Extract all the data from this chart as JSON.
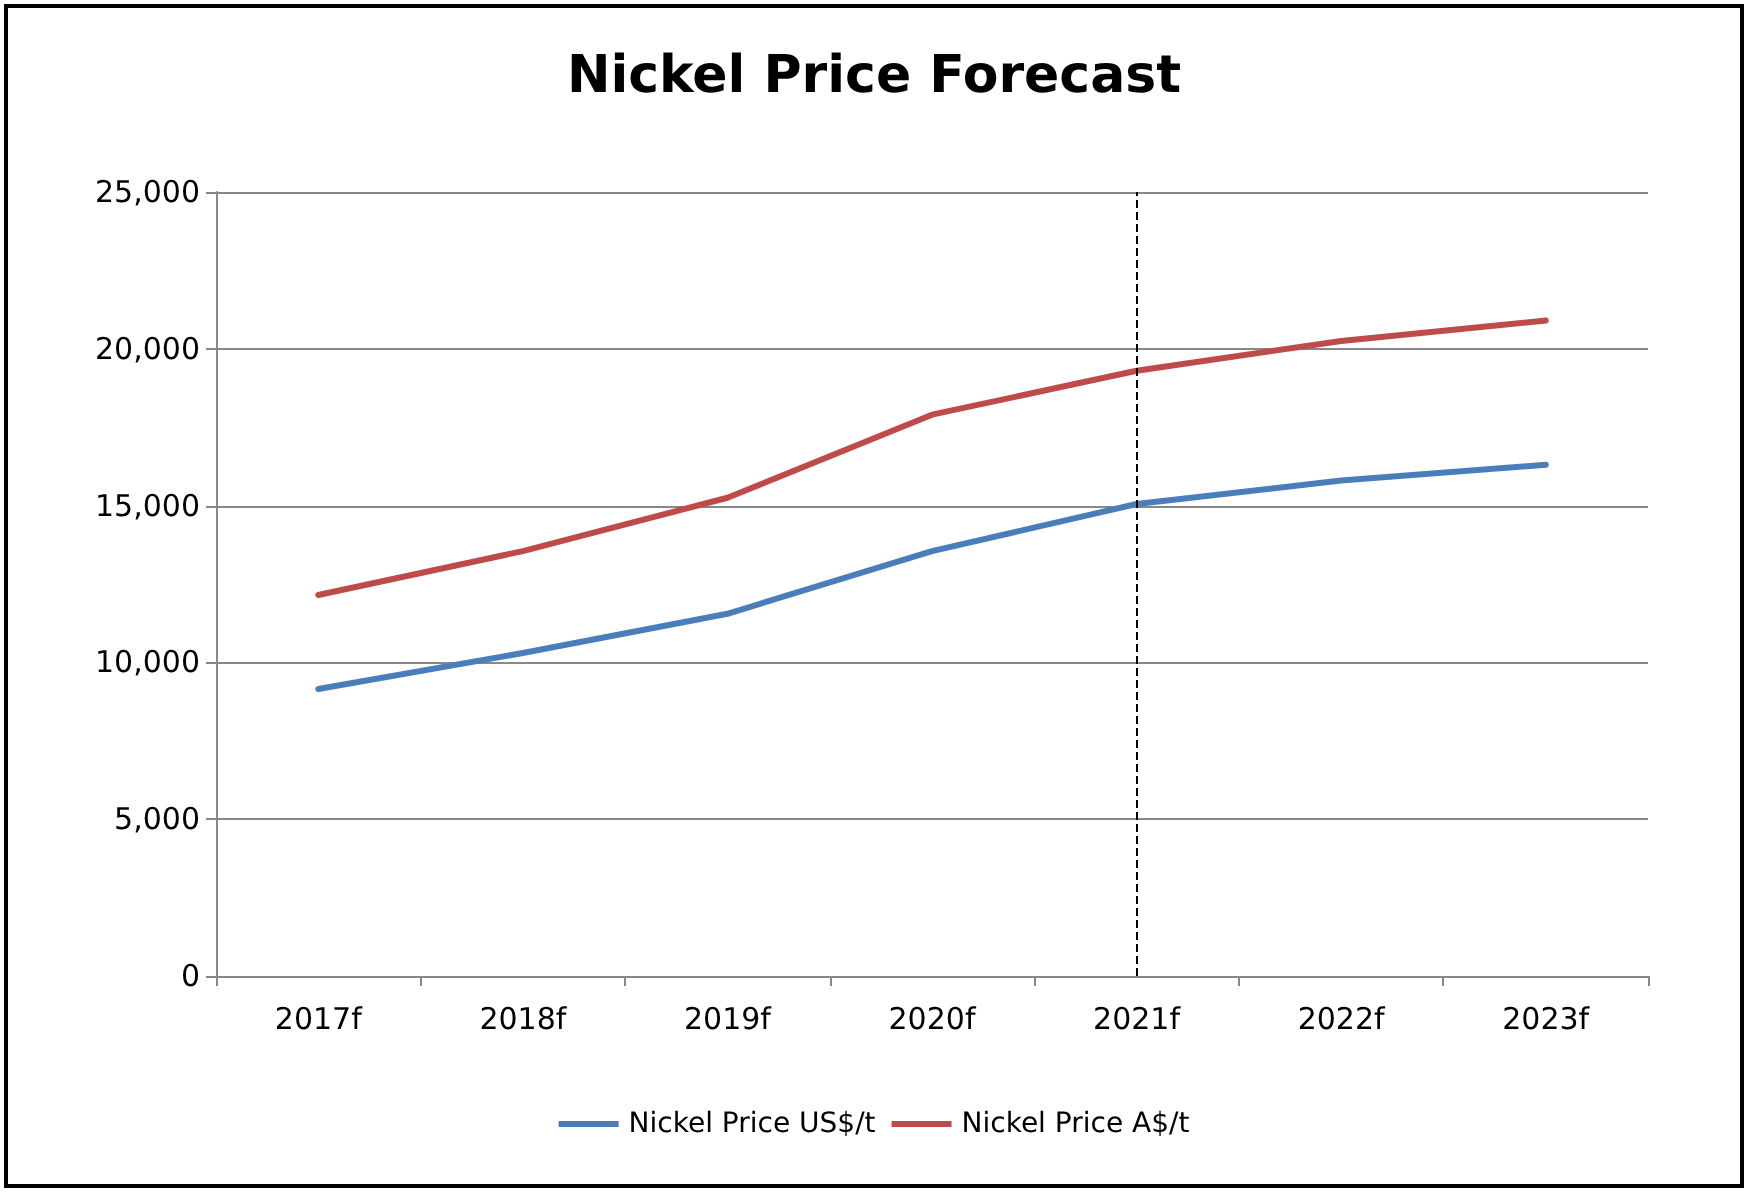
{
  "chart_data": {
    "type": "line",
    "title": "Nickel Price Forecast",
    "categories": [
      "2017f",
      "2018f",
      "2019f",
      "2020f",
      "2021f",
      "2022f",
      "2023f"
    ],
    "series": [
      {
        "name": "Nickel Price US$/t",
        "color": "#4a7ebb",
        "values": [
          9150,
          10300,
          11550,
          13550,
          15050,
          15800,
          16300
        ]
      },
      {
        "name": "Nickel Price A$/t",
        "color": "#be4b48",
        "values": [
          12150,
          13550,
          15250,
          17900,
          19300,
          20250,
          20900
        ]
      }
    ],
    "ylim": [
      0,
      25000
    ],
    "yticks": [
      {
        "value": 0,
        "label": "0"
      },
      {
        "value": 5000,
        "label": "5,000"
      },
      {
        "value": 10000,
        "label": "10,000"
      },
      {
        "value": 15000,
        "label": "15,000"
      },
      {
        "value": 20000,
        "label": "20,000"
      },
      {
        "value": 25000,
        "label": "25,000"
      }
    ],
    "ref_lines": [
      {
        "axis": "x",
        "value": "2021f",
        "color": "#000000",
        "line_style": "dashed"
      }
    ],
    "grid": "y",
    "legend": "bottom",
    "marker": "none",
    "line_style": "solid"
  }
}
